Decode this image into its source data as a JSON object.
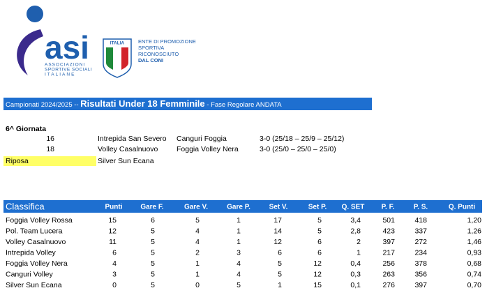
{
  "logo": {
    "brand": "asi",
    "tagline_lines": [
      "ASSOCIAZIONI",
      "SPORTIVE SOCIALI",
      "ITALIANE"
    ],
    "shield": "ITALIA",
    "ente_lines": [
      "ENTE DI PROMOZIONE",
      "SPORTIVA",
      "RICONOSCIUTO",
      "DAL CONI"
    ]
  },
  "header": {
    "prefix": "Campionati 2024/2025 -- ",
    "title": "Risultati Under 18 Femminile",
    "suffix": " - Fase Regolare ANDATA"
  },
  "round": {
    "title": "6^ Giornata",
    "matches": [
      {
        "number": "16",
        "home": "Intrepida San Severo",
        "away": "Canguri Foggia",
        "result": "3-0 (25/18 – 25/9 – 25/12)"
      },
      {
        "number": "18",
        "home": "Volley Casalnuovo",
        "away": "Foggia Volley Nera",
        "result": "3-0 (25/0 – 25/0 – 25/0)"
      }
    ],
    "rest_label": "Riposa",
    "rest_team": "Silver Sun Ecana"
  },
  "table": {
    "columns": [
      "Classifica",
      "Punti",
      "Gare F.",
      "Gare V.",
      "Gare P.",
      "Set V.",
      "Set P.",
      "Q. SET",
      "P. F.",
      "P. S.",
      "Q. Punti"
    ],
    "rows": [
      [
        "Foggia Volley Rossa",
        "15",
        "6",
        "5",
        "1",
        "17",
        "5",
        "3,4",
        "501",
        "418",
        "1,20"
      ],
      [
        "Pol. Team Lucera",
        "12",
        "5",
        "4",
        "1",
        "14",
        "5",
        "2,8",
        "423",
        "337",
        "1,26"
      ],
      [
        "Volley Casalnuovo",
        "11",
        "5",
        "4",
        "1",
        "12",
        "6",
        "2",
        "397",
        "272",
        "1,46"
      ],
      [
        "Intrepida Volley",
        "6",
        "5",
        "2",
        "3",
        "6",
        "6",
        "1",
        "217",
        "234",
        "0,93"
      ],
      [
        "Foggia Volley Nera",
        "4",
        "5",
        "1",
        "4",
        "5",
        "12",
        "0,4",
        "256",
        "378",
        "0,68"
      ],
      [
        "Canguri Volley",
        "3",
        "5",
        "1",
        "4",
        "5",
        "12",
        "0,3",
        "263",
        "356",
        "0,74"
      ],
      [
        "Silver Sun Ecana",
        "0",
        "5",
        "0",
        "5",
        "1",
        "15",
        "0,1",
        "276",
        "397",
        "0,70"
      ]
    ]
  }
}
